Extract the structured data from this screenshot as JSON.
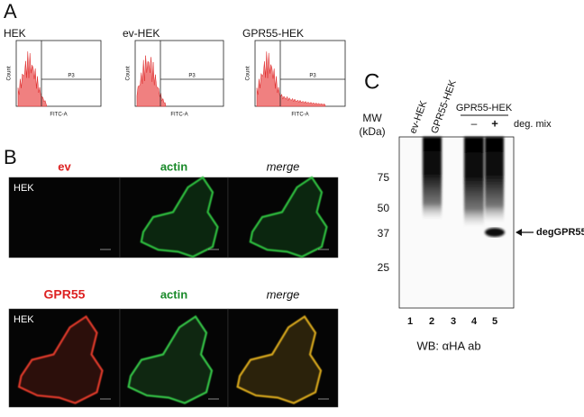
{
  "panel_a": {
    "label": "A",
    "plots": [
      {
        "title": "HEK",
        "gate": "P3",
        "x_label": "FITC-A",
        "y_label": "Count"
      },
      {
        "title": "ev-HEK",
        "gate": "P3",
        "x_label": "FITC-A",
        "y_label": "Count"
      },
      {
        "title": "GPR55-HEK",
        "gate": "P3",
        "x_label": "FITC-A",
        "y_label": "Count"
      }
    ]
  },
  "panel_b": {
    "label": "B",
    "rows": [
      {
        "columns": [
          "ev",
          "actin",
          "merge"
        ],
        "cell_line": "HEK"
      },
      {
        "columns": [
          "GPR55",
          "actin",
          "merge"
        ],
        "cell_line": "HEK"
      }
    ]
  },
  "panel_c": {
    "label": "C",
    "mw_label": [
      "MW",
      "(kDa)"
    ],
    "lane_headers": [
      "ev-HEK",
      "GPR55-HEK"
    ],
    "group_label": "GPR55-HEK",
    "treatment": [
      "–",
      "+"
    ],
    "treatment_label": "deg. mix",
    "mw_markers": [
      "75",
      "50",
      "37",
      "25"
    ],
    "band_label": "degGPR55",
    "lane_numbers": [
      "1",
      "2",
      "3",
      "4",
      "5"
    ],
    "footer": "WB: αHA ab"
  }
}
